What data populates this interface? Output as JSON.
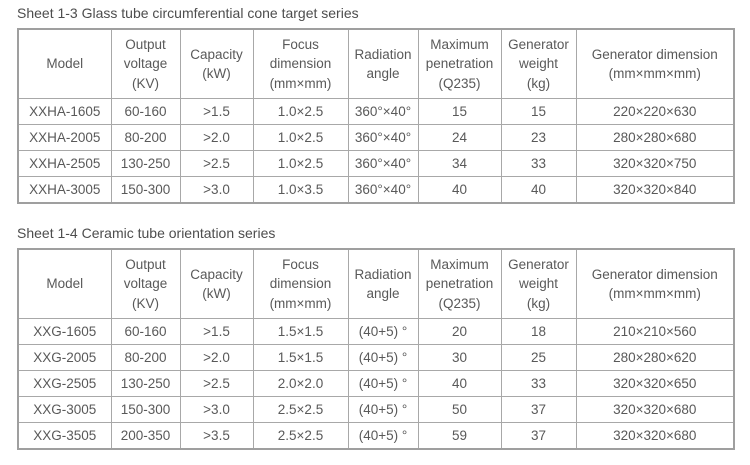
{
  "colors": {
    "text": "#595959",
    "border": "#a8a8a8",
    "background": "#ffffff"
  },
  "tables": [
    {
      "title": "Sheet 1-3 Glass tube circumferential cone target series",
      "columns": [
        "Model",
        "Output\nvoltage\n(KV)",
        "Capacity\n(kW)",
        "Focus\ndimension\n(mm×mm)",
        "Radiation\nangle",
        "Maximum\npenetration\n(Q235)",
        "Generator\nweight\n(kg)",
        "Generator dimension\n(mm×mm×mm)"
      ],
      "rows": [
        [
          "XXHA-1605",
          "60-160",
          ">1.5",
          "1.0×2.5",
          "360°×40°",
          "15",
          "15",
          "220×220×630"
        ],
        [
          "XXHA-2005",
          "80-200",
          ">2.0",
          "1.0×2.5",
          "360°×40°",
          "24",
          "23",
          "280×280×680"
        ],
        [
          "XXHA-2505",
          "130-250",
          ">2.5",
          "1.0×2.5",
          "360°×40°",
          "34",
          "33",
          "320×320×750"
        ],
        [
          "XXHA-3005",
          "150-300",
          ">3.0",
          "1.0×3.5",
          "360°×40°",
          "40",
          "40",
          "320×320×840"
        ]
      ]
    },
    {
      "title": "Sheet 1-4 Ceramic tube orientation series",
      "columns": [
        "Model",
        "Output\nvoltage\n(KV)",
        "Capacity\n(kW)",
        "Focus\ndimension\n(mm×mm)",
        "Radiation\nangle",
        "Maximum\npenetration\n(Q235)",
        "Generator\nweight\n(kg)",
        "Generator dimension\n(mm×mm×mm)"
      ],
      "rows": [
        [
          "XXG-1605",
          "60-160",
          ">1.5",
          "1.5×1.5",
          "(40+5) °",
          "20",
          "18",
          "210×210×560"
        ],
        [
          "XXG-2005",
          "80-200",
          ">2.0",
          "1.5×1.5",
          "(40+5) °",
          "30",
          "25",
          "280×280×620"
        ],
        [
          "XXG-2505",
          "130-250",
          ">2.5",
          "2.0×2.0",
          "(40+5) °",
          "40",
          "33",
          "320×320×650"
        ],
        [
          "XXG-3005",
          "150-300",
          ">3.0",
          "2.5×2.5",
          "(40+5) °",
          "50",
          "37",
          "320×320×680"
        ],
        [
          "XXG-3505",
          "200-350",
          ">3.5",
          "2.5×2.5",
          "(40+5) °",
          "59",
          "37",
          "320×320×680"
        ]
      ]
    }
  ]
}
